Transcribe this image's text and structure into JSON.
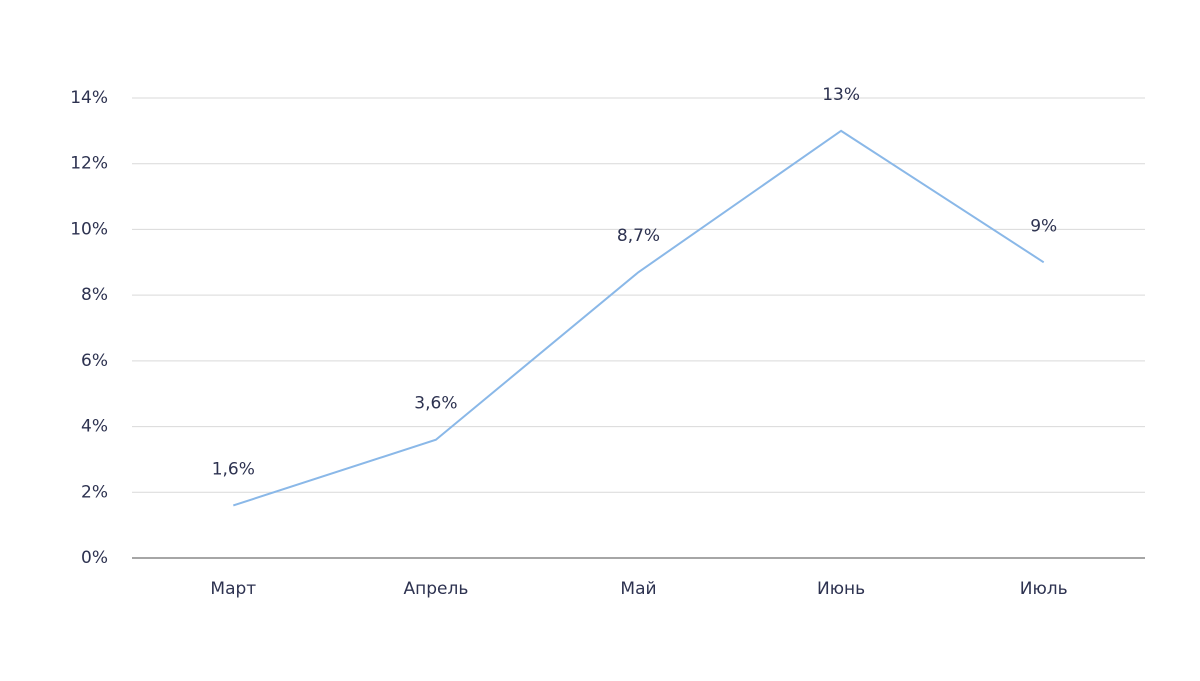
{
  "chart_data": {
    "type": "line",
    "categories": [
      "Март",
      "Апрель",
      "Май",
      "Июнь",
      "Июль"
    ],
    "series": [
      {
        "color": "#8ab8e8",
        "values": [
          1.6,
          3.6,
          8.7,
          13,
          9
        ],
        "value_labels": [
          "1,6%",
          "3,6%",
          "8,7%",
          "13%",
          "9%"
        ]
      }
    ],
    "ylim": [
      0,
      14
    ],
    "yticks": [
      {
        "value": 0,
        "label": "0%"
      },
      {
        "value": 2,
        "label": "2%"
      },
      {
        "value": 4,
        "label": "4%"
      },
      {
        "value": 6,
        "label": "6%"
      },
      {
        "value": 8,
        "label": "8%"
      },
      {
        "value": 10,
        "label": "10%"
      },
      {
        "value": 12,
        "label": "12%"
      },
      {
        "value": 14,
        "label": "14%"
      }
    ],
    "grid": true
  }
}
